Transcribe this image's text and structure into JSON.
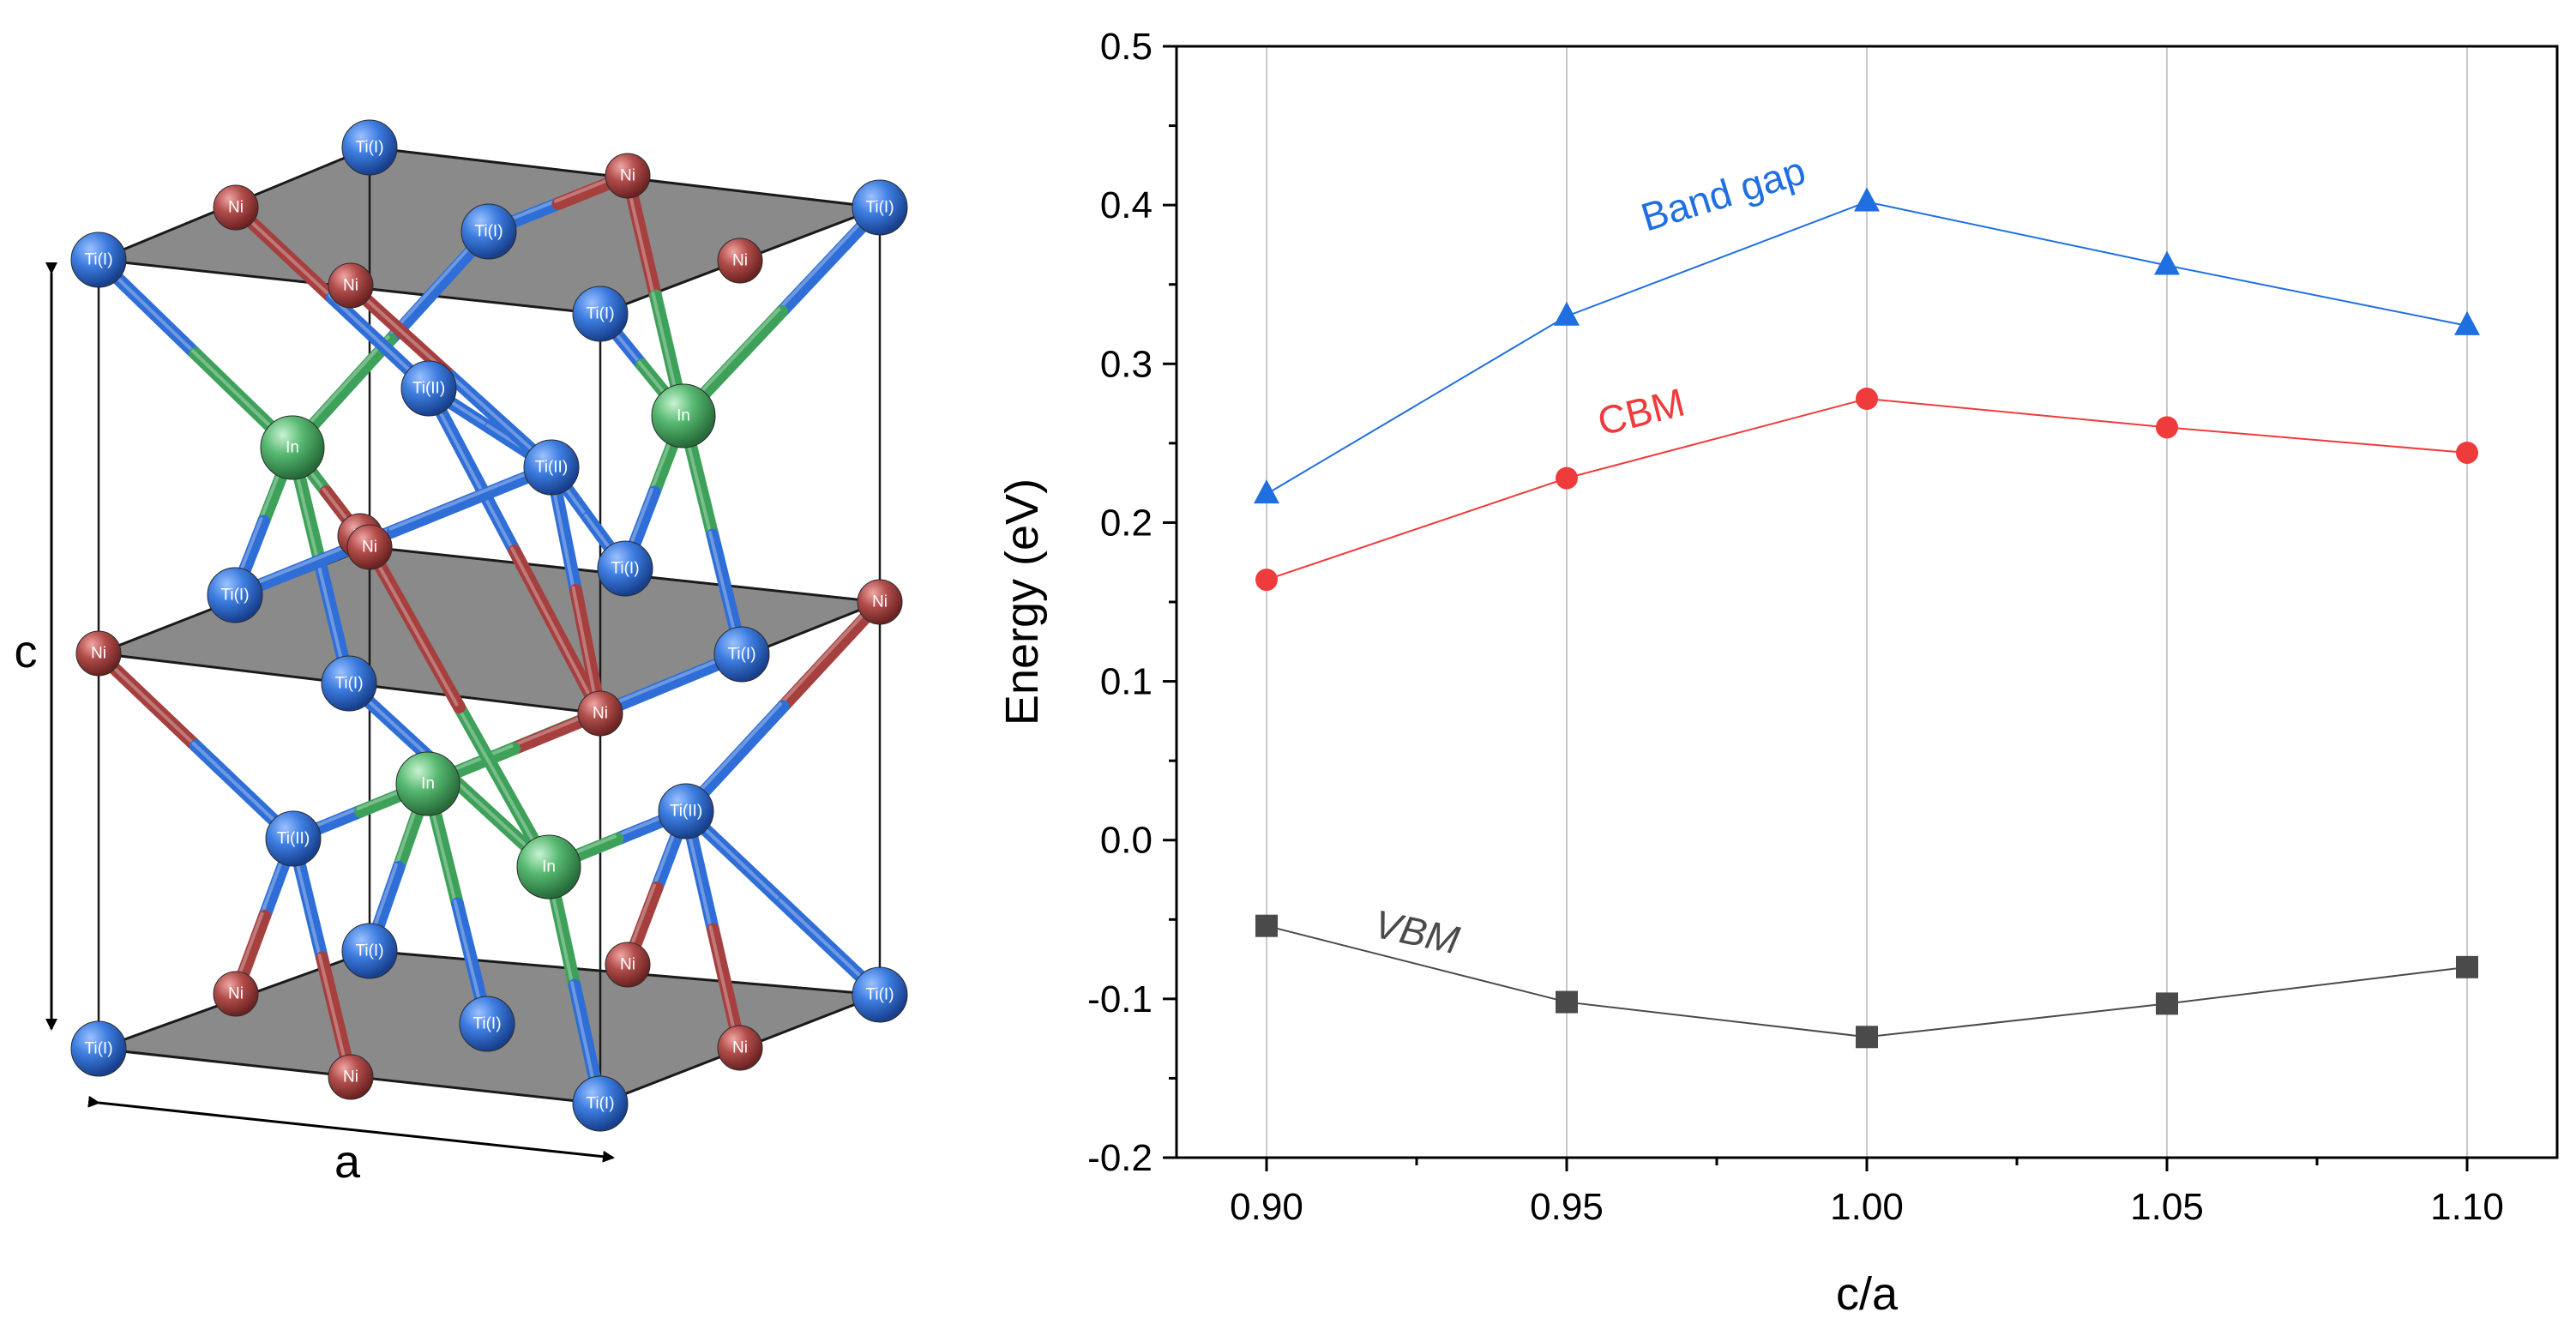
{
  "structure": {
    "lattice_labels": {
      "c": "c",
      "a": "a"
    },
    "atom_labels": {
      "ti1": "Ti(I)",
      "ti2": "Ti(II)",
      "ni": "Ni",
      "in": "In"
    },
    "colors": {
      "ti": "#2f6ed6",
      "ni": "#a5403f",
      "in": "#3ea15a",
      "plane": "#7a7a7a"
    }
  },
  "chart_data": {
    "type": "line",
    "title": "",
    "xlabel": "c/a",
    "ylabel": "Energy (eV)",
    "xlim": [
      0.885,
      1.115
    ],
    "ylim": [
      -0.2,
      0.5
    ],
    "x_ticks": [
      "0.90",
      "0.95",
      "1.00",
      "1.05",
      "1.10"
    ],
    "y_ticks": [
      "-0.2",
      "-0.1",
      "0.0",
      "0.1",
      "0.2",
      "0.3",
      "0.4",
      "0.5"
    ],
    "grid": "vertical",
    "x": [
      0.9,
      0.95,
      1.0,
      1.05,
      1.1
    ],
    "series": [
      {
        "name": "Band gap",
        "values": [
          0.218,
          0.33,
          0.402,
          0.362,
          0.324
        ],
        "color": "#1f6fe0",
        "marker": "triangle"
      },
      {
        "name": "CBM",
        "values": [
          0.164,
          0.228,
          0.278,
          0.26,
          0.244
        ],
        "color": "#ef3b3b",
        "marker": "circle"
      },
      {
        "name": "VBM",
        "values": [
          -0.054,
          -0.102,
          -0.124,
          -0.103,
          -0.08
        ],
        "color": "#4a4a4a",
        "marker": "square"
      }
    ]
  }
}
